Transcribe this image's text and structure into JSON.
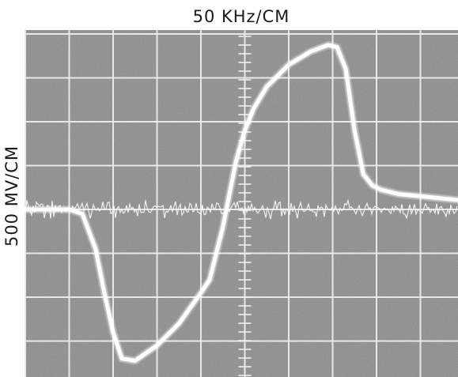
{
  "chart_data": {
    "type": "line",
    "title": "",
    "xlabel": "50 KHz/CM",
    "ylabel": "500 MV/CM",
    "grid": true,
    "xlim": [
      0,
      10
    ],
    "ylim": [
      -4,
      4
    ],
    "series": [
      {
        "x": [
          0,
          0.5,
          1.0,
          1.3,
          1.6,
          1.8,
          2.0,
          2.2,
          2.5,
          3.0,
          3.5,
          4.0,
          4.2,
          4.35,
          4.5,
          4.6,
          4.8,
          5.0,
          5.2,
          5.5,
          6.0,
          6.5,
          6.9,
          7.1,
          7.3,
          7.5,
          7.7,
          7.9,
          8.1,
          8.5,
          9.0,
          9.5,
          10
        ],
        "y": [
          0,
          0,
          0,
          -0.1,
          -0.9,
          -1.9,
          -2.8,
          -3.4,
          -3.45,
          -3.1,
          -2.6,
          -1.9,
          -1.6,
          -1.0,
          -0.4,
          0.1,
          1.1,
          1.8,
          2.3,
          2.8,
          3.3,
          3.6,
          3.75,
          3.7,
          3.2,
          1.8,
          0.8,
          0.55,
          0.45,
          0.35,
          0.3,
          0.25,
          0.2
        ]
      }
    ]
  }
}
